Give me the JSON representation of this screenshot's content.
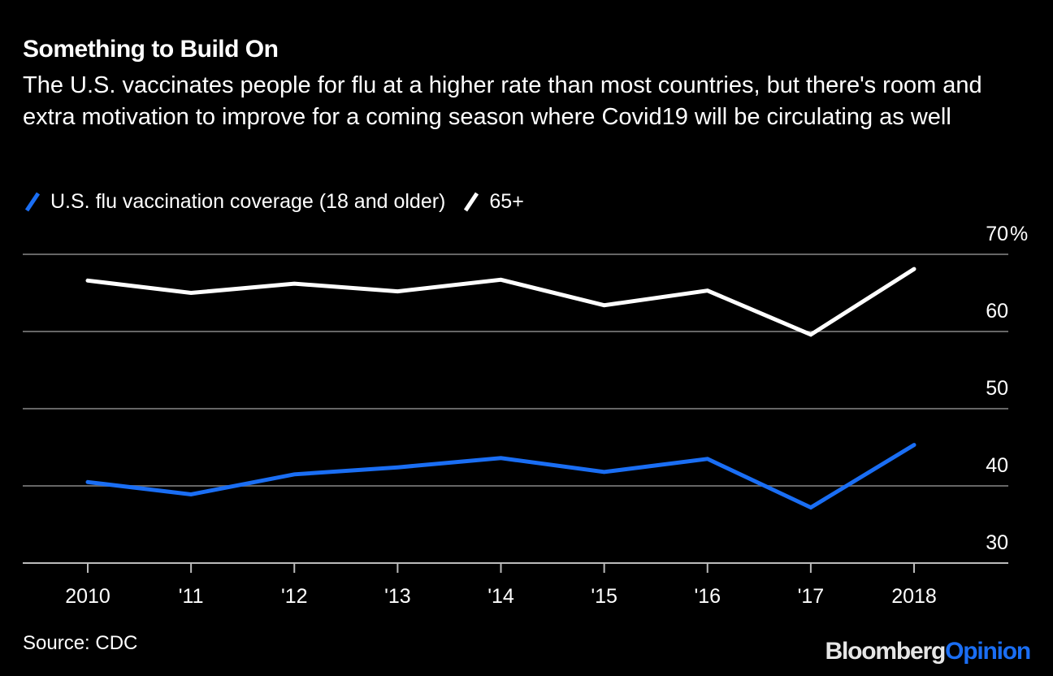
{
  "header": {
    "title": "Something to Build On",
    "subtitle": "The U.S. vaccinates people for flu at a higher rate than most countries, but there's room and extra motivation to improve for a coming season where Covid19 will be circulating as well"
  },
  "footer": {
    "source": "Source: CDC",
    "logo_part1": "Bloomberg",
    "logo_part2": "Opinion"
  },
  "colors": {
    "background": "#000000",
    "adults": "#1a6ef4",
    "seniors": "#ffffff",
    "grid": "#666666",
    "axis": "#bbbbbb"
  },
  "chart_data": {
    "type": "line",
    "title": "Something to Build On",
    "xlabel": "",
    "ylabel": "",
    "x": [
      2010,
      2011,
      2012,
      2013,
      2014,
      2015,
      2016,
      2017,
      2018
    ],
    "x_tick_labels": [
      "2010",
      "'11",
      "'12",
      "'13",
      "'14",
      "'15",
      "'16",
      "'17",
      "2018"
    ],
    "y_ticks": [
      30,
      40,
      50,
      60,
      70
    ],
    "y_tick_labels": [
      "30",
      "40",
      "50",
      "60",
      "70%"
    ],
    "ylim": [
      30,
      70
    ],
    "grid": true,
    "y_axis_side": "right",
    "legend_position": "top-left",
    "series": [
      {
        "name": "U.S. flu vaccination coverage (18 and older)",
        "color": "#1a6ef4",
        "values": [
          40.5,
          38.9,
          41.5,
          42.4,
          43.6,
          41.8,
          43.5,
          37.2,
          45.3
        ]
      },
      {
        "name": "65+",
        "color": "#ffffff",
        "values": [
          66.6,
          65.0,
          66.2,
          65.2,
          66.7,
          63.4,
          65.3,
          59.6,
          68.1
        ]
      }
    ]
  }
}
